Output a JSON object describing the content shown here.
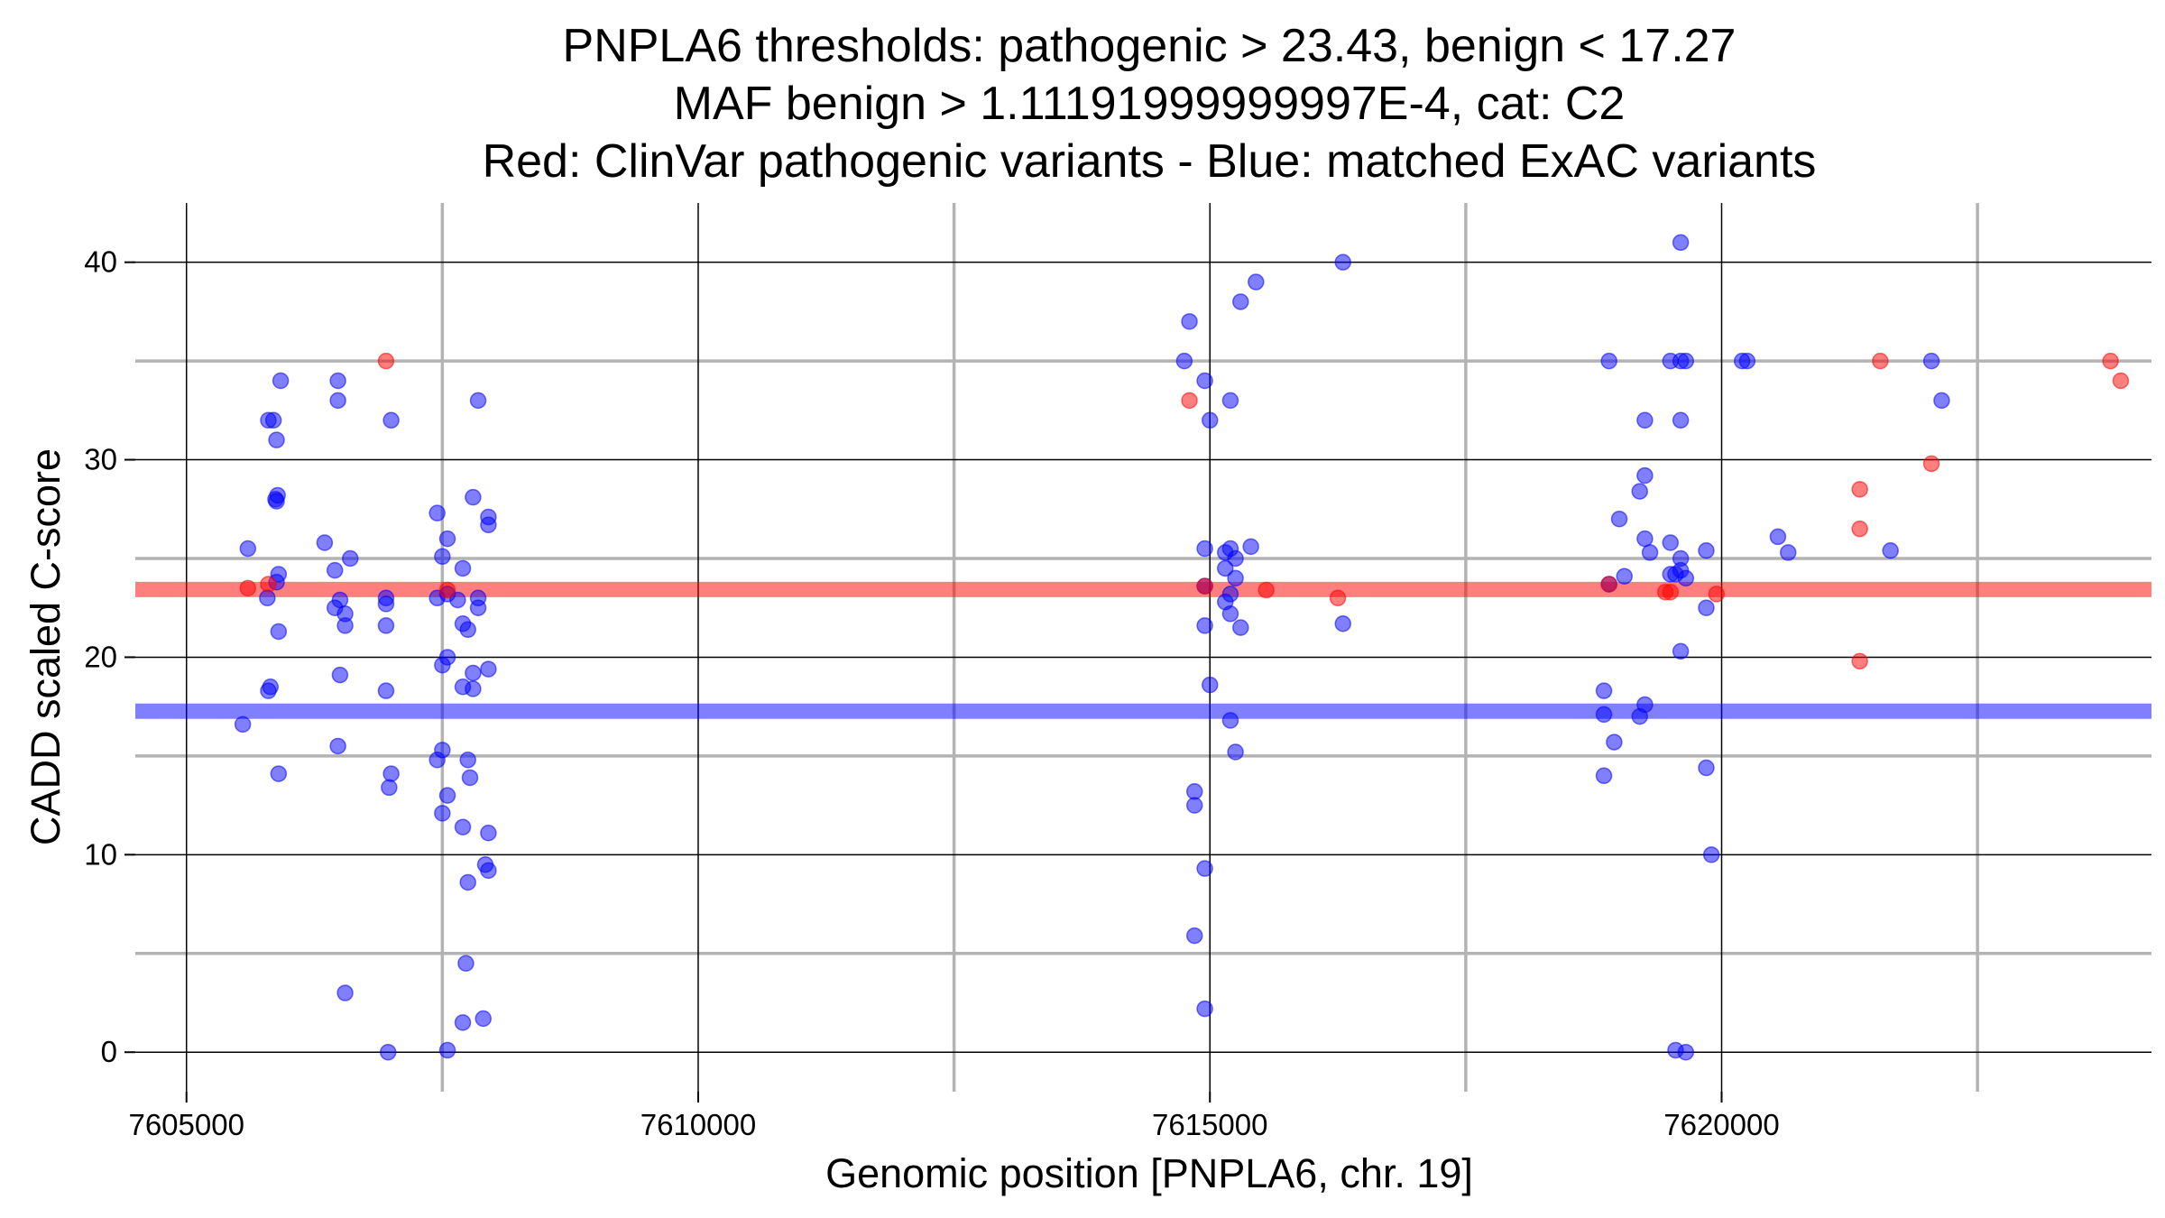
{
  "chart_data": {
    "type": "scatter",
    "title": [
      "PNPLA6 thresholds: pathogenic > 23.43, benign < 17.27",
      "MAF benign > 1.11191999999997E-4, cat: C2",
      "Red: ClinVar pathogenic variants - Blue: matched ExAC variants"
    ],
    "xlabel": "Genomic position [PNPLA6, chr. 19]",
    "ylabel": "CADD scaled C-score",
    "xlim": [
      7604500,
      7624200
    ],
    "ylim": [
      -2,
      43
    ],
    "x_major_ticks": [
      7605000,
      7610000,
      7615000,
      7620000
    ],
    "x_minor_ticks": [
      7607500,
      7612500,
      7617500,
      7622500
    ],
    "y_major_ticks": [
      0,
      10,
      20,
      30,
      40
    ],
    "y_minor_ticks": [
      5,
      15,
      25,
      35
    ],
    "x_tick_labels": [
      "7605000",
      "7610000",
      "7615000",
      "7620000"
    ],
    "y_tick_labels": [
      "0",
      "10",
      "20",
      "30",
      "40"
    ],
    "grid": true,
    "thresholds": [
      {
        "name": "pathogenic",
        "value": 23.43,
        "color": "#ff0000"
      },
      {
        "name": "benign",
        "value": 17.27,
        "color": "#0000ff"
      }
    ],
    "series": [
      {
        "color": "#0000ff",
        "points": [
          [
            7605550,
            16.6
          ],
          [
            7605600,
            25.5
          ],
          [
            7605800,
            32
          ],
          [
            7605850,
            32
          ],
          [
            7605880,
            31
          ],
          [
            7605870,
            28
          ],
          [
            7605880,
            27.9
          ],
          [
            7605890,
            28.2
          ],
          [
            7605900,
            24.2
          ],
          [
            7605880,
            23.8
          ],
          [
            7605790,
            23
          ],
          [
            7605900,
            21.3
          ],
          [
            7605820,
            18.5
          ],
          [
            7605800,
            18.3
          ],
          [
            7605900,
            14.1
          ],
          [
            7605920,
            34
          ],
          [
            7606350,
            25.8
          ],
          [
            7606450,
            24.4
          ],
          [
            7606450,
            22.5
          ],
          [
            7606500,
            22.9
          ],
          [
            7606550,
            21.6
          ],
          [
            7606550,
            22.2
          ],
          [
            7606600,
            25
          ],
          [
            7606500,
            19.1
          ],
          [
            7606480,
            15.5
          ],
          [
            7606550,
            3
          ],
          [
            7606480,
            33
          ],
          [
            7606480,
            34
          ],
          [
            7606950,
            23
          ],
          [
            7606950,
            22.7
          ],
          [
            7606950,
            21.6
          ],
          [
            7606950,
            18.3
          ],
          [
            7607000,
            14.1
          ],
          [
            7606980,
            13.4
          ],
          [
            7607000,
            32
          ],
          [
            7606970,
            0
          ],
          [
            7607450,
            27.3
          ],
          [
            7607550,
            26
          ],
          [
            7607500,
            25.1
          ],
          [
            7607550,
            23.2
          ],
          [
            7607450,
            23
          ],
          [
            7607650,
            22.9
          ],
          [
            7607700,
            24.5
          ],
          [
            7607700,
            21.7
          ],
          [
            7607750,
            21.4
          ],
          [
            7607550,
            20
          ],
          [
            7607500,
            19.6
          ],
          [
            7607700,
            18.5
          ],
          [
            7607800,
            19.2
          ],
          [
            7607800,
            18.4
          ],
          [
            7607850,
            22.5
          ],
          [
            7607850,
            23
          ],
          [
            7607800,
            28.1
          ],
          [
            7607950,
            27.1
          ],
          [
            7607950,
            26.7
          ],
          [
            7607950,
            19.4
          ],
          [
            7607850,
            33
          ],
          [
            7607450,
            14.8
          ],
          [
            7607500,
            15.3
          ],
          [
            7607750,
            14.8
          ],
          [
            7607770,
            13.9
          ],
          [
            7607550,
            13
          ],
          [
            7607500,
            12.1
          ],
          [
            7607700,
            11.4
          ],
          [
            7607950,
            11.1
          ],
          [
            7607920,
            9.5
          ],
          [
            7607950,
            9.2
          ],
          [
            7607750,
            8.6
          ],
          [
            7607730,
            4.5
          ],
          [
            7607700,
            1.5
          ],
          [
            7607900,
            1.7
          ],
          [
            7607550,
            0.1
          ],
          [
            7614800,
            37
          ],
          [
            7614750,
            35
          ],
          [
            7614950,
            34
          ],
          [
            7615000,
            32
          ],
          [
            7614950,
            25.5
          ],
          [
            7615200,
            25.5
          ],
          [
            7615150,
            25.3
          ],
          [
            7615250,
            25
          ],
          [
            7615400,
            25.6
          ],
          [
            7615150,
            24.5
          ],
          [
            7615250,
            24
          ],
          [
            7614950,
            23.6
          ],
          [
            7615150,
            22.8
          ],
          [
            7615200,
            23.2
          ],
          [
            7615200,
            22.2
          ],
          [
            7615300,
            21.5
          ],
          [
            7614950,
            21.6
          ],
          [
            7615000,
            18.6
          ],
          [
            7615200,
            16.8
          ],
          [
            7615250,
            15.2
          ],
          [
            7614850,
            13.2
          ],
          [
            7614850,
            12.5
          ],
          [
            7614950,
            9.3
          ],
          [
            7614850,
            5.9
          ],
          [
            7614950,
            2.2
          ],
          [
            7615300,
            38
          ],
          [
            7615450,
            39
          ],
          [
            7615200,
            33
          ],
          [
            7616300,
            40
          ],
          [
            7616300,
            21.7
          ],
          [
            7618900,
            35
          ],
          [
            7619000,
            27
          ],
          [
            7618900,
            23.7
          ],
          [
            7619050,
            24.1
          ],
          [
            7619300,
            25.3
          ],
          [
            7619250,
            26
          ],
          [
            7619200,
            28.4
          ],
          [
            7619250,
            29.2
          ],
          [
            7619250,
            32
          ],
          [
            7618850,
            18.3
          ],
          [
            7618850,
            17.1
          ],
          [
            7618950,
            15.7
          ],
          [
            7619200,
            17
          ],
          [
            7619250,
            17.6
          ],
          [
            7618850,
            14
          ],
          [
            7619500,
            24.2
          ],
          [
            7619550,
            24.2
          ],
          [
            7619650,
            24
          ],
          [
            7619500,
            35
          ],
          [
            7619650,
            35
          ],
          [
            7619600,
            35
          ],
          [
            7619600,
            32
          ],
          [
            7619500,
            25.8
          ],
          [
            7619600,
            25
          ],
          [
            7619600,
            24.4
          ],
          [
            7619850,
            25.4
          ],
          [
            7619850,
            22.5
          ],
          [
            7619600,
            20.3
          ],
          [
            7619850,
            14.4
          ],
          [
            7619900,
            10
          ],
          [
            7619550,
            0.1
          ],
          [
            7619650,
            0
          ],
          [
            7619600,
            41
          ],
          [
            7620250,
            35
          ],
          [
            7620200,
            35
          ],
          [
            7620550,
            26.1
          ],
          [
            7620650,
            25.3
          ],
          [
            7621650,
            25.4
          ],
          [
            7622050,
            35
          ],
          [
            7622150,
            33
          ]
        ]
      },
      {
        "color": "#ff0000",
        "points": [
          [
            7605600,
            23.5
          ],
          [
            7605800,
            23.7
          ],
          [
            7606950,
            35
          ],
          [
            7607550,
            23.4
          ],
          [
            7614800,
            33
          ],
          [
            7614950,
            23.6
          ],
          [
            7615550,
            23.4
          ],
          [
            7616250,
            23
          ],
          [
            7618900,
            23.7
          ],
          [
            7619450,
            23.3
          ],
          [
            7619500,
            23.3
          ],
          [
            7619950,
            23.2
          ],
          [
            7621350,
            28.5
          ],
          [
            7621350,
            26.5
          ],
          [
            7621350,
            19.8
          ],
          [
            7621550,
            35
          ],
          [
            7622050,
            29.8
          ],
          [
            7623800,
            35
          ],
          [
            7623900,
            34
          ]
        ]
      }
    ]
  }
}
